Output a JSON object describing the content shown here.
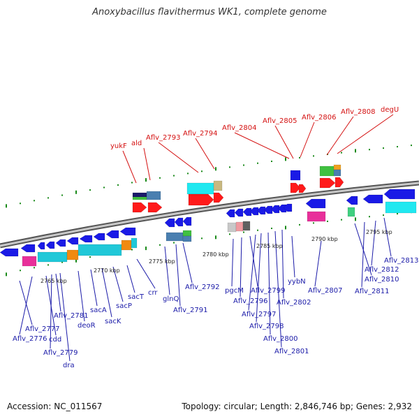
{
  "title": "Anoxybacillus flavithermus WK1, complete genome",
  "footer": {
    "accession": "Accession: NC_011567",
    "summary": "Topology: circular; Length: 2,846,746 bp; Genes: 2,932"
  },
  "colors": {
    "backbone": "#8a8a8a",
    "forward_gene": "#ff1a1a",
    "reverse_gene": "#1a1ae6",
    "label_blue": "#1a1aa8",
    "label_red": "#d41010",
    "tick": "#1a8a1a"
  },
  "scale_labels": [
    "2765 kbp",
    "2770 kbp",
    "2775 kbp",
    "2780 kbp",
    "2785 kbp",
    "2790 kbp",
    "2795 kbp"
  ],
  "gene_labels_top": [
    "yukF",
    "ald",
    "Aflv_2793",
    "Aflv_2794",
    "Aflv_2804",
    "Aflv_2805",
    "Aflv_2806",
    "Aflv_2808",
    "degU"
  ],
  "gene_labels_bottom": [
    "Aflv_2777",
    "Aflv_2776",
    "cdd",
    "Aflv_2781",
    "Aflv_2779",
    "dra",
    "deoR",
    "sacA",
    "sacK",
    "sacP",
    "sacT",
    "crr",
    "glnQ",
    "Aflv_2791",
    "Aflv_2792",
    "pgcM",
    "Aflv_2796",
    "Aflv_2799",
    "Aflv_2797",
    "Aflv_2798",
    "Aflv_2800",
    "Aflv_2801",
    "Aflv_2802",
    "yybN",
    "Aflv_2807",
    "Aflv_2810",
    "Aflv_2811",
    "Aflv_2812",
    "Aflv_2813"
  ]
}
